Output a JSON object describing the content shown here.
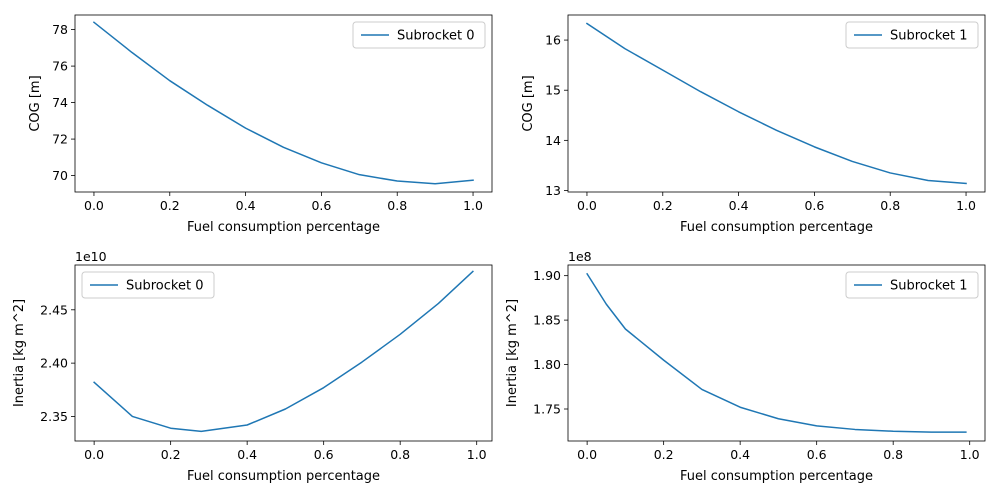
{
  "chart_data": [
    {
      "type": "line",
      "xlabel": "Fuel consumption percentage",
      "ylabel": "COG [m]",
      "offset_text": "",
      "legend": "upper-right",
      "xlim": [
        -0.05,
        1.05
      ],
      "ylim": [
        69.1,
        78.8
      ],
      "xticks": [
        0.0,
        0.2,
        0.4,
        0.6,
        0.8,
        1.0
      ],
      "xtick_labels": [
        "0.0",
        "0.2",
        "0.4",
        "0.6",
        "0.8",
        "1.0"
      ],
      "yticks": [
        70,
        72,
        74,
        76,
        78
      ],
      "ytick_labels": [
        "70",
        "72",
        "74",
        "76",
        "78"
      ],
      "series": [
        {
          "name": "Subrocket 0",
          "color": "#1f77b4",
          "x": [
            0.0,
            0.1,
            0.2,
            0.3,
            0.4,
            0.5,
            0.6,
            0.7,
            0.8,
            0.9,
            1.0
          ],
          "y": [
            78.4,
            76.75,
            75.2,
            73.85,
            72.6,
            71.55,
            70.7,
            70.05,
            69.7,
            69.55,
            69.75
          ]
        }
      ]
    },
    {
      "type": "line",
      "xlabel": "Fuel consumption percentage",
      "ylabel": "COG [m]",
      "offset_text": "",
      "legend": "upper-right",
      "xlim": [
        -0.05,
        1.05
      ],
      "ylim": [
        12.97,
        16.5
      ],
      "xticks": [
        0.0,
        0.2,
        0.4,
        0.6,
        0.8,
        1.0
      ],
      "xtick_labels": [
        "0.0",
        "0.2",
        "0.4",
        "0.6",
        "0.8",
        "1.0"
      ],
      "yticks": [
        13,
        14,
        15,
        16
      ],
      "ytick_labels": [
        "13",
        "14",
        "15",
        "16"
      ],
      "series": [
        {
          "name": "Subrocket 1",
          "color": "#1f77b4",
          "x": [
            0.0,
            0.1,
            0.2,
            0.3,
            0.4,
            0.5,
            0.6,
            0.7,
            0.8,
            0.9,
            1.0
          ],
          "y": [
            16.33,
            15.83,
            15.4,
            14.97,
            14.57,
            14.2,
            13.87,
            13.58,
            13.35,
            13.2,
            13.14
          ]
        }
      ]
    },
    {
      "type": "line",
      "xlabel": "Fuel consumption percentage",
      "ylabel": "Inertia [kg m^2]",
      "offset_text": "1e10",
      "legend": "upper-left",
      "xlim": [
        -0.05,
        1.04
      ],
      "ylim": [
        2.327,
        2.492
      ],
      "xticks": [
        0.0,
        0.2,
        0.4,
        0.6,
        0.8,
        1.0
      ],
      "xtick_labels": [
        "0.0",
        "0.2",
        "0.4",
        "0.6",
        "0.8",
        "1.0"
      ],
      "yticks": [
        2.35,
        2.4,
        2.45
      ],
      "ytick_labels": [
        "2.35",
        "2.40",
        "2.45"
      ],
      "series": [
        {
          "name": "Subrocket 0",
          "color": "#1f77b4",
          "x": [
            0.0,
            0.1,
            0.2,
            0.28,
            0.4,
            0.5,
            0.6,
            0.7,
            0.8,
            0.9,
            0.99
          ],
          "y": [
            2.382,
            2.35,
            2.339,
            2.336,
            2.342,
            2.357,
            2.377,
            2.401,
            2.427,
            2.456,
            2.486
          ]
        }
      ]
    },
    {
      "type": "line",
      "xlabel": "Fuel consumption percentage",
      "ylabel": "Inertia [kg m^2]",
      "offset_text": "1e8",
      "legend": "upper-right",
      "xlim": [
        -0.05,
        1.04
      ],
      "ylim": [
        1.714,
        1.912
      ],
      "xticks": [
        0.0,
        0.2,
        0.4,
        0.6,
        0.8,
        1.0
      ],
      "xtick_labels": [
        "0.0",
        "0.2",
        "0.4",
        "0.6",
        "0.8",
        "1.0"
      ],
      "yticks": [
        1.75,
        1.8,
        1.85,
        1.9
      ],
      "ytick_labels": [
        "1.75",
        "1.80",
        "1.85",
        "1.90"
      ],
      "series": [
        {
          "name": "Subrocket 1",
          "color": "#1f77b4",
          "x": [
            0.0,
            0.05,
            0.1,
            0.2,
            0.3,
            0.4,
            0.5,
            0.6,
            0.7,
            0.8,
            0.9,
            0.99
          ],
          "y": [
            1.902,
            1.868,
            1.84,
            1.805,
            1.772,
            1.752,
            1.739,
            1.731,
            1.727,
            1.725,
            1.724,
            1.724
          ]
        }
      ]
    }
  ]
}
